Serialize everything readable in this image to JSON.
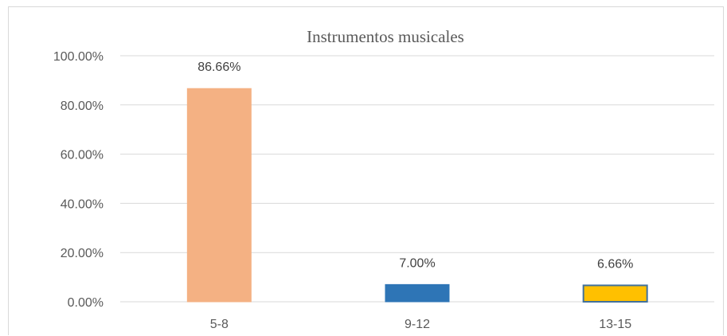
{
  "chart_data": {
    "type": "bar",
    "title": "Instrumentos musicales",
    "categories": [
      "5-8",
      "9-12",
      "13-15"
    ],
    "values": [
      86.66,
      7.0,
      6.66
    ],
    "data_labels": [
      "86.66%",
      "7.00%",
      "6.66%"
    ],
    "bar_colors": [
      "#F4B183",
      "#2E75B6",
      "#FFC000"
    ],
    "bar_border_colors": [
      "#F4B183",
      "#2E75B6",
      "#41719C"
    ],
    "ylim": [
      0,
      100
    ],
    "yticks": [
      0,
      20,
      40,
      60,
      80,
      100
    ],
    "ytick_labels": [
      "0.00%",
      "20.00%",
      "40.00%",
      "60.00%",
      "80.00%",
      "100.00%"
    ],
    "grid": true,
    "legend": "none"
  }
}
